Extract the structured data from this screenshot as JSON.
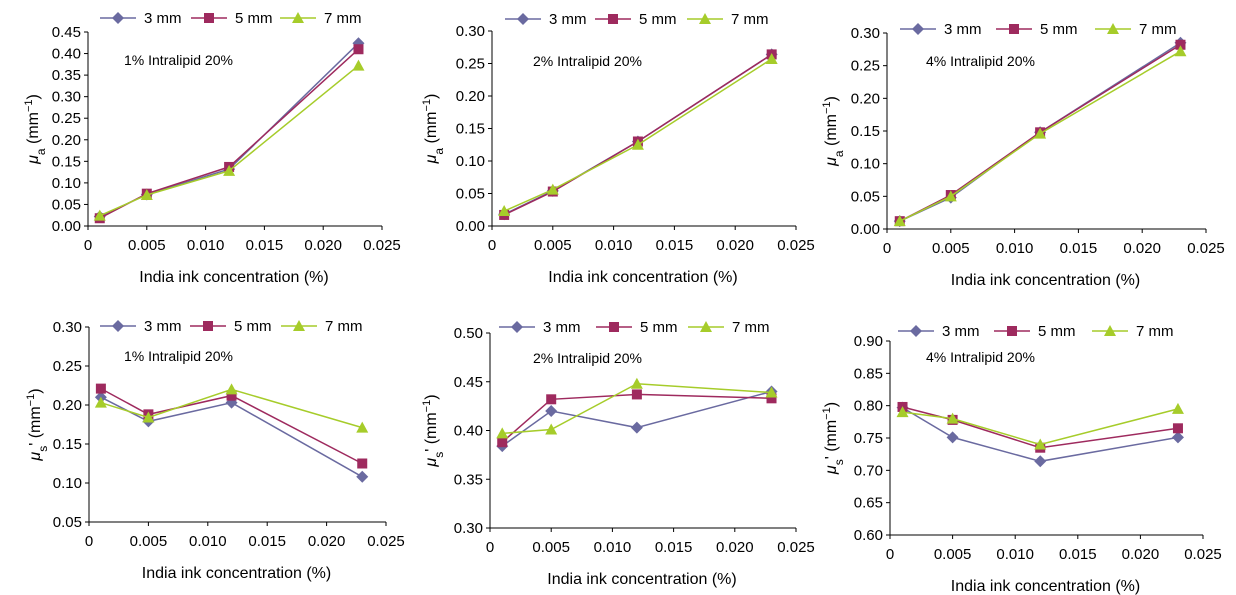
{
  "figure": {
    "common_x_label": "India ink concentration (%)",
    "common_x_ticks": [
      "0",
      "0.005",
      "0.010",
      "0.015",
      "0.020",
      "0.025"
    ],
    "legend_labels": [
      "3 mm",
      "5 mm",
      "7 mm"
    ]
  },
  "colors": {
    "series_3mm": "#6a6aa0",
    "series_5mm": "#9e2a5e",
    "series_7mm": "#a6cc2a"
  },
  "chart_data": [
    {
      "type": "line",
      "panel": "top-left",
      "annotation": "1% Intralipid 20%",
      "xlabel": "India ink concentration (%)",
      "ylabel_symbol": "μ",
      "ylabel_sub": "a",
      "ylabel_prime": "",
      "ylabel_unit": " (mm",
      "ylabel_exp": "−1",
      "ylabel_close": ")",
      "xlim": [
        0,
        0.025
      ],
      "ylim": [
        0,
        0.45
      ],
      "x_ticks": [
        "0",
        "0.005",
        "0.010",
        "0.015",
        "0.020",
        "0.025"
      ],
      "y_ticks": [
        "0.00",
        "0.05",
        "0.10",
        "0.15",
        "0.20",
        "0.25",
        "0.30",
        "0.35",
        "0.40",
        "0.45"
      ],
      "legend_placement": "top",
      "grid": false,
      "x": [
        0.001,
        0.005,
        0.012,
        0.023
      ],
      "series": [
        {
          "name": "3 mm",
          "marker": "diamond",
          "values": [
            0.022,
            0.073,
            0.132,
            0.424
          ]
        },
        {
          "name": "5 mm",
          "marker": "square",
          "values": [
            0.018,
            0.075,
            0.137,
            0.41
          ]
        },
        {
          "name": "7 mm",
          "marker": "triangle",
          "values": [
            0.024,
            0.072,
            0.128,
            0.372
          ]
        }
      ]
    },
    {
      "type": "line",
      "panel": "top-middle",
      "annotation": "2% Intralipid 20%",
      "xlabel": "India ink concentration (%)",
      "ylabel_symbol": "μ",
      "ylabel_sub": "a",
      "ylabel_prime": "",
      "ylabel_unit": " (mm",
      "ylabel_exp": "−1",
      "ylabel_close": ")",
      "xlim": [
        0,
        0.025
      ],
      "ylim": [
        0,
        0.3
      ],
      "x_ticks": [
        "0",
        "0.005",
        "0.010",
        "0.015",
        "0.020",
        "0.025"
      ],
      "y_ticks": [
        "0.00",
        "0.05",
        "0.10",
        "0.15",
        "0.20",
        "0.25",
        "0.30"
      ],
      "legend_placement": "top",
      "grid": false,
      "x": [
        0.001,
        0.005,
        0.012,
        0.023
      ],
      "series": [
        {
          "name": "3 mm",
          "marker": "diamond",
          "values": [
            0.018,
            0.054,
            0.13,
            0.264
          ]
        },
        {
          "name": "5 mm",
          "marker": "square",
          "values": [
            0.017,
            0.053,
            0.13,
            0.264
          ]
        },
        {
          "name": "7 mm",
          "marker": "triangle",
          "values": [
            0.023,
            0.056,
            0.125,
            0.257
          ]
        }
      ]
    },
    {
      "type": "line",
      "panel": "top-right",
      "annotation": "4% Intralipid 20%",
      "xlabel": "India ink concentration (%)",
      "ylabel_symbol": "μ",
      "ylabel_sub": "a",
      "ylabel_prime": "",
      "ylabel_unit": " (mm",
      "ylabel_exp": "−1",
      "ylabel_close": ")",
      "xlim": [
        0,
        0.025
      ],
      "ylim": [
        0,
        0.3
      ],
      "x_ticks": [
        "0",
        "0.005",
        "0.010",
        "0.015",
        "0.020",
        "0.025"
      ],
      "y_ticks": [
        "0.00",
        "0.05",
        "0.10",
        "0.15",
        "0.20",
        "0.25",
        "0.30"
      ],
      "legend_placement": "top",
      "grid": false,
      "x": [
        0.001,
        0.005,
        0.012,
        0.023
      ],
      "series": [
        {
          "name": "3 mm",
          "marker": "diamond",
          "values": [
            0.012,
            0.048,
            0.148,
            0.285
          ]
        },
        {
          "name": "5 mm",
          "marker": "square",
          "values": [
            0.012,
            0.052,
            0.148,
            0.282
          ]
        },
        {
          "name": "7 mm",
          "marker": "triangle",
          "values": [
            0.012,
            0.05,
            0.146,
            0.272
          ]
        }
      ]
    },
    {
      "type": "line",
      "panel": "bottom-left",
      "annotation": "1% Intralipid 20%",
      "xlabel": "India ink concentration (%)",
      "ylabel_symbol": "μ",
      "ylabel_sub": "s",
      "ylabel_prime": "'",
      "ylabel_unit": " (mm",
      "ylabel_exp": "−1",
      "ylabel_close": ")",
      "xlim": [
        0,
        0.025
      ],
      "ylim": [
        0.05,
        0.3
      ],
      "x_ticks": [
        "0",
        "0.005",
        "0.010",
        "0.015",
        "0.020",
        "0.025"
      ],
      "y_ticks": [
        "0.05",
        "0.10",
        "0.15",
        "0.20",
        "0.25",
        "0.30"
      ],
      "legend_placement": "top",
      "grid": false,
      "x": [
        0.001,
        0.005,
        0.012,
        0.023
      ],
      "series": [
        {
          "name": "3 mm",
          "marker": "diamond",
          "values": [
            0.21,
            0.179,
            0.203,
            0.108
          ]
        },
        {
          "name": "5 mm",
          "marker": "square",
          "values": [
            0.221,
            0.188,
            0.212,
            0.125
          ]
        },
        {
          "name": "7 mm",
          "marker": "triangle",
          "values": [
            0.203,
            0.184,
            0.22,
            0.171
          ]
        }
      ]
    },
    {
      "type": "line",
      "panel": "bottom-middle",
      "annotation": "2% Intralipid 20%",
      "xlabel": "India ink concentration (%)",
      "ylabel_symbol": "μ",
      "ylabel_sub": "s",
      "ylabel_prime": "'",
      "ylabel_unit": " (mm",
      "ylabel_exp": "−1",
      "ylabel_close": ")",
      "xlim": [
        0,
        0.025
      ],
      "ylim": [
        0.3,
        0.5
      ],
      "x_ticks": [
        "0",
        "0.005",
        "0.010",
        "0.015",
        "0.020",
        "0.025"
      ],
      "y_ticks": [
        "0.30",
        "0.35",
        "0.40",
        "0.45",
        "0.50"
      ],
      "legend_placement": "top",
      "grid": false,
      "x": [
        0.001,
        0.005,
        0.012,
        0.023
      ],
      "series": [
        {
          "name": "3 mm",
          "marker": "diamond",
          "values": [
            0.384,
            0.42,
            0.403,
            0.44
          ]
        },
        {
          "name": "5 mm",
          "marker": "square",
          "values": [
            0.388,
            0.432,
            0.437,
            0.433
          ]
        },
        {
          "name": "7 mm",
          "marker": "triangle",
          "values": [
            0.397,
            0.401,
            0.448,
            0.439
          ]
        }
      ]
    },
    {
      "type": "line",
      "panel": "bottom-right",
      "annotation": "4% Intralipid 20%",
      "xlabel": "India ink concentration (%)",
      "ylabel_symbol": "μ",
      "ylabel_sub": "s",
      "ylabel_prime": "'",
      "ylabel_unit": " (mm",
      "ylabel_exp": "−1",
      "ylabel_close": ")",
      "xlim": [
        0,
        0.025
      ],
      "ylim": [
        0.6,
        0.9
      ],
      "x_ticks": [
        "0",
        "0.005",
        "0.010",
        "0.015",
        "0.020",
        "0.025"
      ],
      "y_ticks": [
        "0.60",
        "0.65",
        "0.70",
        "0.75",
        "0.80",
        "0.85",
        "0.90"
      ],
      "legend_placement": "top",
      "grid": false,
      "x": [
        0.001,
        0.005,
        0.012,
        0.023
      ],
      "series": [
        {
          "name": "3 mm",
          "marker": "diamond",
          "values": [
            0.797,
            0.751,
            0.714,
            0.751
          ]
        },
        {
          "name": "5 mm",
          "marker": "square",
          "values": [
            0.798,
            0.778,
            0.735,
            0.765
          ]
        },
        {
          "name": "7 mm",
          "marker": "triangle",
          "values": [
            0.79,
            0.78,
            0.74,
            0.795
          ]
        }
      ]
    }
  ]
}
